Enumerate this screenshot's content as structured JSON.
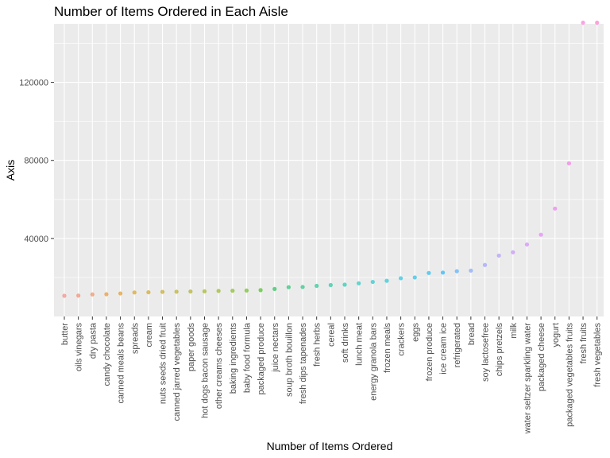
{
  "chart_data": {
    "type": "scatter",
    "title": "Number of Items Ordered in Each Aisle",
    "xlabel": "Number of Items Ordered",
    "ylabel": "Axis",
    "ylim": [
      0,
      150000
    ],
    "yticks": [
      40000,
      80000,
      120000
    ],
    "ytick_labels": [
      "40000",
      "80000",
      "120000"
    ],
    "grid": true,
    "background": "#ebebeb",
    "categories": [
      "butter",
      "oils vinegars",
      "dry pasta",
      "candy chocolate",
      "canned meals beans",
      "spreads",
      "cream",
      "nuts seeds dried fruit",
      "canned jarred vegetables",
      "paper goods",
      "hot dogs bacon sausage",
      "other creams cheeses",
      "baking ingredients",
      "baby food formula",
      "packaged produce",
      "juice nectars",
      "soup broth bouillon",
      "fresh dips tapenades",
      "fresh herbs",
      "cereal",
      "soft drinks",
      "lunch meat",
      "energy granola bars",
      "frozen meals",
      "crackers",
      "eggs",
      "frozen produce",
      "ice cream ice",
      "refrigerated",
      "bread",
      "soy lactosefree",
      "chips pretzels",
      "milk",
      "water seltzer sparkling water",
      "packaged cheese",
      "yogurt",
      "packaged vegetables fruits",
      "fresh fruits",
      "fresh vegetables"
    ],
    "values": [
      10600,
      10700,
      11300,
      11400,
      11800,
      12300,
      12400,
      12600,
      12700,
      12800,
      12900,
      13100,
      13200,
      13300,
      13500,
      14100,
      15000,
      15100,
      15700,
      16100,
      16300,
      17000,
      17700,
      18300,
      19600,
      20000,
      22300,
      22500,
      23200,
      23500,
      26400,
      31200,
      32900,
      36900,
      41900,
      55300,
      78500,
      150600,
      150600
    ],
    "colors": [
      "#f8766d",
      "#f47a5a",
      "#ee7f45",
      "#e68613",
      "#dd8d00",
      "#d49200",
      "#c99800",
      "#bd9d00",
      "#b0a100",
      "#a3a500",
      "#94a900",
      "#83ad00",
      "#6fb100",
      "#55b400",
      "#2fb600",
      "#00b938",
      "#00bb57",
      "#00bc6d",
      "#00be81",
      "#00bf93",
      "#00c0a5",
      "#00c0b5",
      "#00bfc4",
      "#00bdd1",
      "#00badd",
      "#00b6e8",
      "#00b0f2",
      "#00a9fa",
      "#35a2ff",
      "#6e9aff",
      "#8f91ff",
      "#a888ff",
      "#bd7fff",
      "#cf78ff",
      "#df70f8",
      "#eb69ee",
      "#f564e3",
      "#fa63d4",
      "#fd61c4"
    ]
  }
}
